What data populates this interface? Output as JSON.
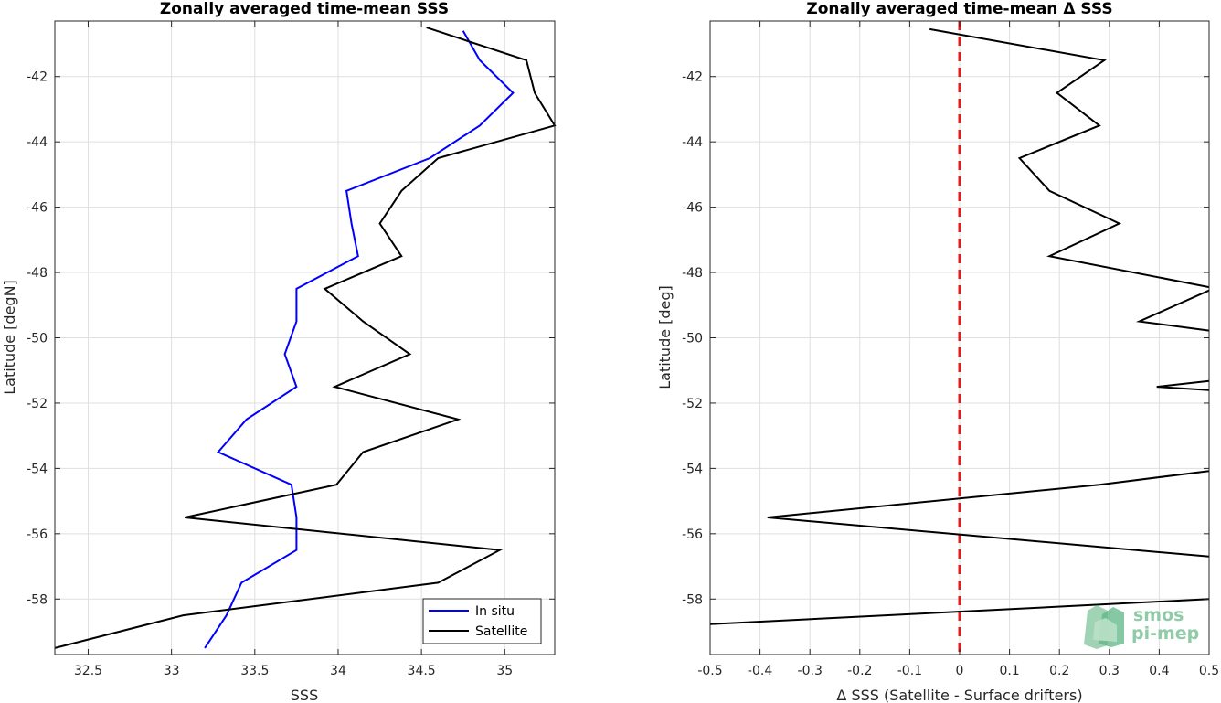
{
  "colors": {
    "in_situ": "#0000ff",
    "satellite": "#000000",
    "zero_line": "#e31a1c",
    "grid": "#dfdfdf",
    "logo": "#8fcba6"
  },
  "logo": {
    "line1": "smos",
    "line2": "pi-mep"
  },
  "chart_data": [
    {
      "type": "line",
      "title": "Zonally averaged time-mean SSS",
      "xlabel": "SSS",
      "ylabel": "Latitude [degN]",
      "xlim": [
        32.3,
        35.3
      ],
      "ylim": [
        -59.7,
        -40.3
      ],
      "xticks": [
        32.5,
        33,
        33.5,
        34,
        34.5,
        35
      ],
      "xtick_labels": [
        "32.5",
        "33",
        "33.5",
        "34",
        "34.5",
        "35"
      ],
      "yticks": [
        -42,
        -44,
        -46,
        -48,
        -50,
        -52,
        -54,
        -56,
        -58
      ],
      "ytick_labels": [
        "-42",
        "-44",
        "-46",
        "-48",
        "-50",
        "-52",
        "-54",
        "-56",
        "-58"
      ],
      "grid": true,
      "legend": {
        "placement": "bottom-right"
      },
      "series": [
        {
          "name": "In situ",
          "color": "#0000ff",
          "x": [
            34.75,
            34.85,
            35.05,
            34.85,
            34.55,
            34.05,
            34.08,
            34.12,
            33.75,
            33.75,
            33.68,
            33.75,
            33.45,
            33.28,
            33.72,
            33.75,
            33.75,
            33.42,
            33.33,
            33.2
          ],
          "y": [
            -40.6,
            -41.5,
            -42.5,
            -43.5,
            -44.5,
            -45.5,
            -46.5,
            -47.5,
            -48.5,
            -49.5,
            -50.5,
            -51.5,
            -52.5,
            -53.5,
            -54.5,
            -55.5,
            -56.5,
            -57.5,
            -58.5,
            -59.5
          ]
        },
        {
          "name": "Satellite",
          "color": "#000000",
          "x": [
            34.53,
            35.13,
            35.18,
            35.3,
            34.6,
            34.38,
            34.25,
            34.38,
            33.92,
            34.15,
            34.43,
            33.98,
            34.72,
            34.15,
            33.99,
            33.08,
            34.97,
            34.6,
            33.07,
            32.3
          ],
          "y": [
            -40.5,
            -41.5,
            -42.5,
            -43.5,
            -44.5,
            -45.5,
            -46.5,
            -47.5,
            -48.5,
            -49.5,
            -50.5,
            -51.5,
            -52.5,
            -53.5,
            -54.5,
            -55.5,
            -56.5,
            -57.5,
            -58.5,
            -59.5
          ]
        }
      ]
    },
    {
      "type": "line",
      "title": "Zonally averaged time-mean Δ SSS",
      "xlabel": "Δ SSS (Satellite - Surface drifters)",
      "ylabel": "Latitude [deg]",
      "xlim": [
        -0.5,
        0.5
      ],
      "ylim": [
        -59.7,
        -40.3
      ],
      "xticks": [
        -0.5,
        -0.4,
        -0.3,
        -0.2,
        -0.1,
        0,
        0.1,
        0.2,
        0.3,
        0.4,
        0.5
      ],
      "xtick_labels": [
        "-0.5",
        "-0.4",
        "-0.3",
        "-0.2",
        "-0.1",
        "0",
        "0.1",
        "0.2",
        "0.3",
        "0.4",
        "0.5"
      ],
      "yticks": [
        -42,
        -44,
        -46,
        -48,
        -50,
        -52,
        -54,
        -56,
        -58
      ],
      "ytick_labels": [
        "-42",
        "-44",
        "-46",
        "-48",
        "-50",
        "-52",
        "-54",
        "-56",
        "-58"
      ],
      "grid": true,
      "reference_line": {
        "x": 0,
        "style": "dashed",
        "color": "#e31a1c"
      },
      "series": [
        {
          "segments": [
            {
              "x": [
                -0.06,
                0.29,
                0.195,
                0.28,
                0.12,
                0.18,
                0.32,
                0.18,
                0.5
              ],
              "y": [
                -40.55,
                -41.5,
                -42.5,
                -43.5,
                -44.5,
                -45.5,
                -46.5,
                -47.5,
                -48.45
              ]
            },
            {
              "x": [
                0.5,
                0.36,
                0.5
              ],
              "y": [
                -48.55,
                -49.5,
                -49.78
              ]
            },
            {
              "x": [
                0.5,
                0.395,
                0.5
              ],
              "y": [
                -51.32,
                -51.5,
                -51.6
              ]
            },
            {
              "x": [
                0.5,
                0.28,
                -0.385,
                0.5
              ],
              "y": [
                -54.08,
                -54.5,
                -55.5,
                -56.7
              ]
            },
            {
              "x": [
                0.5,
                -0.5
              ],
              "y": [
                -58.0,
                -58.77
              ]
            }
          ],
          "color": "#000000"
        }
      ]
    }
  ]
}
